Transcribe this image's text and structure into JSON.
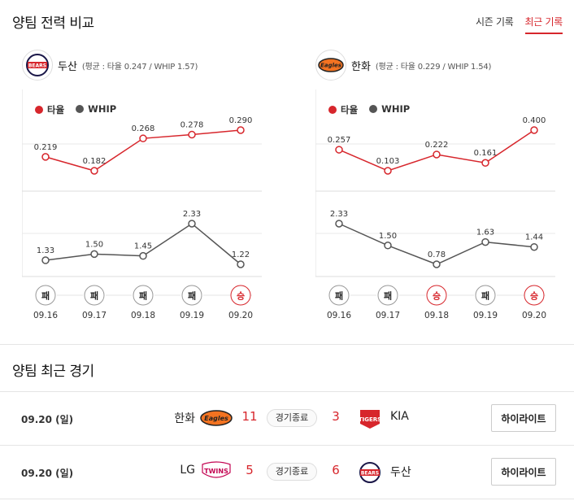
{
  "section_compare": {
    "title": "양팀 전력 비교"
  },
  "tabs": {
    "season": "시즌 기록",
    "recent": "최근 기록"
  },
  "legend": {
    "avg": "타율",
    "whip": "WHIP"
  },
  "colors": {
    "accent": "#d7262c",
    "whip": "#555555",
    "avg": "#d7262c"
  },
  "panels": [
    {
      "team": "두산",
      "avg_text": "(평균 : 타율 0.247 / WHIP 1.57)",
      "logo_icon": "doosan-bears-logo",
      "logo_text": "BEARS",
      "chart_data": {
        "type": "line",
        "categories": [
          "09.16",
          "09.17",
          "09.18",
          "09.19",
          "09.20"
        ],
        "series": [
          {
            "name": "타율",
            "values": [
              0.219,
              0.182,
              0.268,
              0.278,
              0.29
            ],
            "labels": [
              "0.219",
              "0.182",
              "0.268",
              "0.278",
              "0.290"
            ]
          },
          {
            "name": "WHIP",
            "values": [
              1.33,
              1.5,
              1.45,
              2.33,
              1.22
            ],
            "labels": [
              "1.33",
              "1.50",
              "1.45",
              "2.33",
              "1.22"
            ]
          }
        ],
        "results": [
          "패",
          "패",
          "패",
          "패",
          "승"
        ]
      }
    },
    {
      "team": "한화",
      "avg_text": "(평균 : 타율 0.229 / WHIP 1.54)",
      "logo_icon": "hanwha-eagles-logo",
      "logo_text": "Eagles",
      "chart_data": {
        "type": "line",
        "categories": [
          "09.16",
          "09.17",
          "09.18",
          "09.19",
          "09.20"
        ],
        "series": [
          {
            "name": "타율",
            "values": [
              0.257,
              0.103,
              0.222,
              0.161,
              0.4
            ],
            "labels": [
              "0.257",
              "0.103",
              "0.222",
              "0.161",
              "0.400"
            ]
          },
          {
            "name": "WHIP",
            "values": [
              2.33,
              1.5,
              0.78,
              1.63,
              1.44
            ],
            "labels": [
              "2.33",
              "1.50",
              "0.78",
              "1.63",
              "1.44"
            ]
          }
        ],
        "results": [
          "패",
          "패",
          "승",
          "패",
          "승"
        ]
      }
    }
  ],
  "section_recent": {
    "title": "양팀 최근 경기"
  },
  "games": [
    {
      "date": "09.20 (일)",
      "home": "한화",
      "home_logo": "Eagles",
      "home_score": "11",
      "status": "경기종료",
      "away_score": "3",
      "away": "KIA",
      "away_logo": "TIGERS",
      "highlight": "하이라이트"
    },
    {
      "date": "09.20 (일)",
      "home": "LG",
      "home_logo": "TWINS",
      "home_score": "5",
      "status": "경기종료",
      "away_score": "6",
      "away": "두산",
      "away_logo": "BEARS",
      "highlight": "하이라이트"
    }
  ]
}
